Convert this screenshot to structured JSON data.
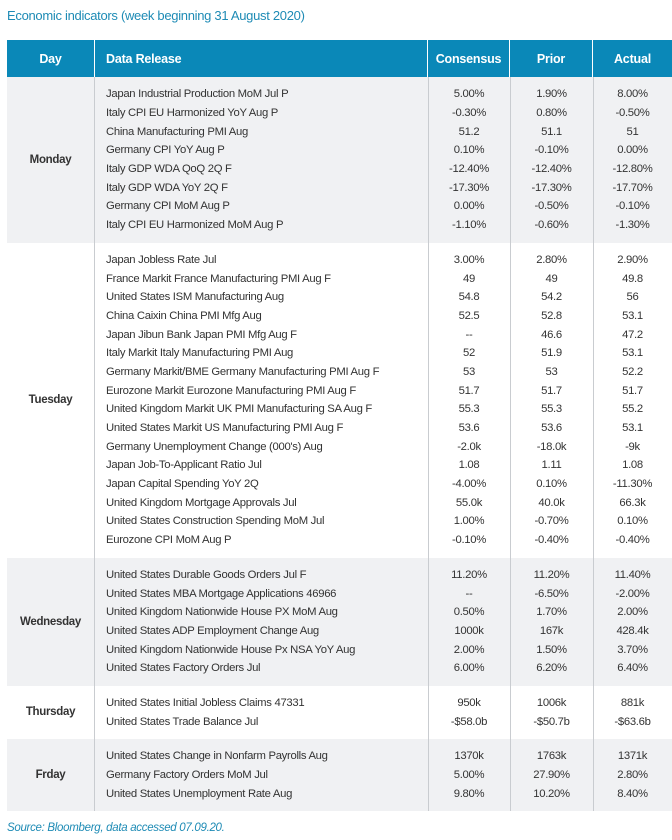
{
  "title": "Economic indicators (week beginning 31 August 2020)",
  "columns": {
    "day": "Day",
    "release": "Data Release",
    "consensus": "Consensus",
    "prior": "Prior",
    "actual": "Actual"
  },
  "colors": {
    "header_bg": "#0a88b8",
    "title": "#1e8bb5",
    "shaded_group": "#f0f1f3"
  },
  "groups": [
    {
      "day": "Monday",
      "shaded": true,
      "rows": [
        [
          "Japan Industrial Production MoM Jul P",
          "5.00%",
          "1.90%",
          "8.00%"
        ],
        [
          "Italy CPI EU Harmonized YoY Aug P",
          "-0.30%",
          "0.80%",
          "-0.50%"
        ],
        [
          "China Manufacturing PMI Aug",
          "51.2",
          "51.1",
          "51"
        ],
        [
          "Germany CPI YoY Aug P",
          "0.10%",
          "-0.10%",
          "0.00%"
        ],
        [
          "Italy GDP WDA QoQ 2Q F",
          "-12.40%",
          "-12.40%",
          "-12.80%"
        ],
        [
          "Italy GDP WDA YoY 2Q F",
          "-17.30%",
          "-17.30%",
          "-17.70%"
        ],
        [
          "Germany CPI MoM Aug P",
          "0.00%",
          "-0.50%",
          "-0.10%"
        ],
        [
          "Italy CPI EU Harmonized MoM Aug P",
          "-1.10%",
          "-0.60%",
          "-1.30%"
        ]
      ]
    },
    {
      "day": "Tuesday",
      "shaded": false,
      "rows": [
        [
          "Japan Jobless Rate Jul",
          "3.00%",
          "2.80%",
          "2.90%"
        ],
        [
          "France Markit France Manufacturing PMI Aug F",
          "49",
          "49",
          "49.8"
        ],
        [
          "United States ISM Manufacturing Aug",
          "54.8",
          "54.2",
          "56"
        ],
        [
          "China Caixin China PMI Mfg Aug",
          "52.5",
          "52.8",
          "53.1"
        ],
        [
          "Japan Jibun Bank Japan PMI Mfg Aug F",
          "--",
          "46.6",
          "47.2"
        ],
        [
          "Italy Markit Italy Manufacturing PMI Aug",
          "52",
          "51.9",
          "53.1"
        ],
        [
          "Germany Markit/BME Germany Manufacturing PMI Aug F",
          "53",
          "53",
          "52.2"
        ],
        [
          "Eurozone Markit Eurozone Manufacturing PMI Aug F",
          "51.7",
          "51.7",
          "51.7"
        ],
        [
          "United Kingdom Markit UK PMI Manufacturing SA Aug F",
          "55.3",
          "55.3",
          "55.2"
        ],
        [
          "United States Markit US Manufacturing PMI Aug F",
          "53.6",
          "53.6",
          "53.1"
        ],
        [
          "Germany Unemployment Change (000's) Aug",
          "-2.0k",
          "-18.0k",
          "-9k"
        ],
        [
          "Japan Job-To-Applicant Ratio Jul",
          "1.08",
          "1.11",
          "1.08"
        ],
        [
          "Japan Capital Spending YoY 2Q",
          "-4.00%",
          "0.10%",
          "-11.30%"
        ],
        [
          "United Kingdom Mortgage Approvals Jul",
          "55.0k",
          "40.0k",
          "66.3k"
        ],
        [
          "United States Construction Spending MoM Jul",
          "1.00%",
          "-0.70%",
          "0.10%"
        ],
        [
          "Eurozone CPI MoM Aug P",
          "-0.10%",
          "-0.40%",
          "-0.40%"
        ]
      ]
    },
    {
      "day": "Wednesday",
      "shaded": true,
      "rows": [
        [
          "United States Durable Goods Orders Jul F",
          "11.20%",
          "11.20%",
          "11.40%"
        ],
        [
          "United States MBA Mortgage Applications 46966",
          "--",
          "-6.50%",
          "-2.00%"
        ],
        [
          "United Kingdom Nationwide House PX MoM Aug",
          "0.50%",
          "1.70%",
          "2.00%"
        ],
        [
          "United States ADP Employment Change Aug",
          "1000k",
          "167k",
          "428.4k"
        ],
        [
          "United Kingdom Nationwide House Px NSA YoY Aug",
          "2.00%",
          "1.50%",
          "3.70%"
        ],
        [
          "United States Factory Orders Jul",
          "6.00%",
          "6.20%",
          "6.40%"
        ]
      ]
    },
    {
      "day": "Thursday",
      "shaded": false,
      "rows": [
        [
          "United States Initial Jobless Claims 47331",
          "950k",
          "1006k",
          "881k"
        ],
        [
          "United States Trade Balance Jul",
          "-$58.0b",
          "-$50.7b",
          "-$63.6b"
        ]
      ]
    },
    {
      "day": "Frday",
      "shaded": true,
      "rows": [
        [
          "United States Change in Nonfarm Payrolls Aug",
          "1370k",
          "1763k",
          "1371k"
        ],
        [
          "Germany Factory Orders MoM Jul",
          "5.00%",
          "27.90%",
          "2.80%"
        ],
        [
          "United States Unemployment Rate Aug",
          "9.80%",
          "10.20%",
          "8.40%"
        ]
      ]
    }
  ],
  "source": "Source: Bloomberg, data accessed 07.09.20."
}
